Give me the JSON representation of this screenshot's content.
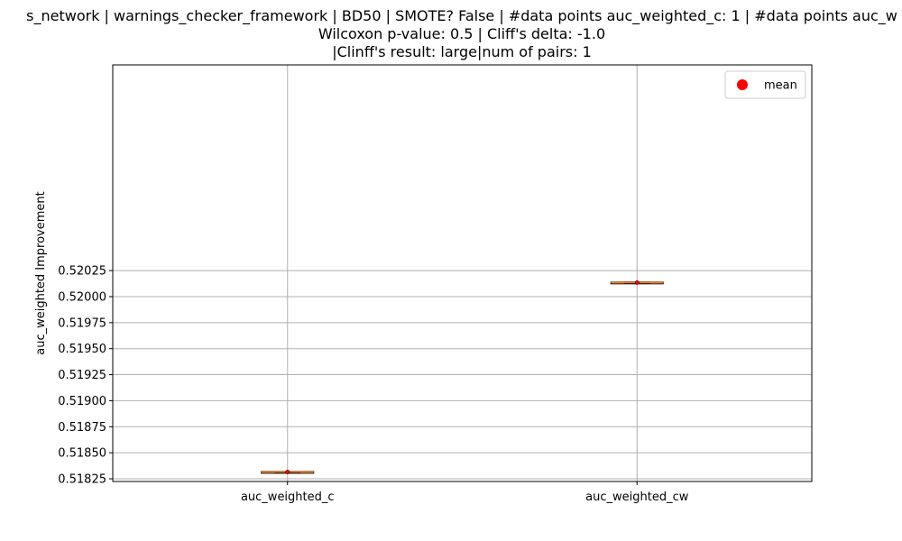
{
  "chart_data": {
    "type": "box",
    "title_lines": [
      "s_network | warnings_checker_framework | BD50 | SMOTE? False | #data points auc_weighted_c: 1 | #data points auc_w",
      "Wilcoxon p-value: 0.5 | Cliff's delta: -1.0",
      "|Clinff's result: large|num of pairs: 1"
    ],
    "xlabel": "",
    "ylabel": "auc_weighted Improvement",
    "categories": [
      "auc_weighted_c",
      "auc_weighted_cw"
    ],
    "series": [
      {
        "category": "auc_weighted_c",
        "median": 0.518315,
        "mean": 0.518315,
        "q1": 0.518315,
        "q3": 0.518315,
        "whisker_low": 0.518315,
        "whisker_high": 0.518315
      },
      {
        "category": "auc_weighted_cw",
        "median": 0.520135,
        "mean": 0.520135,
        "q1": 0.520135,
        "q3": 0.520135,
        "whisker_low": 0.520135,
        "whisker_high": 0.520135
      }
    ],
    "ylim": [
      0.518224,
      0.522226
    ],
    "yticks": [
      0.51825,
      0.5185,
      0.51875,
      0.519,
      0.51925,
      0.5195,
      0.51975,
      0.52,
      0.52025
    ],
    "ytick_labels": [
      "0.51825",
      "0.51850",
      "0.51875",
      "0.51900",
      "0.51925",
      "0.51950",
      "0.51975",
      "0.52000",
      "0.52025"
    ],
    "grid": true,
    "legend": {
      "position": "top-right",
      "entries": [
        {
          "label": "mean",
          "marker": "circle",
          "color": "#ff0000"
        }
      ]
    },
    "colors": {
      "median": "#ff7f0e",
      "box": "#000000",
      "mean": "#ff0000",
      "grid": "#b0b0b0"
    }
  }
}
